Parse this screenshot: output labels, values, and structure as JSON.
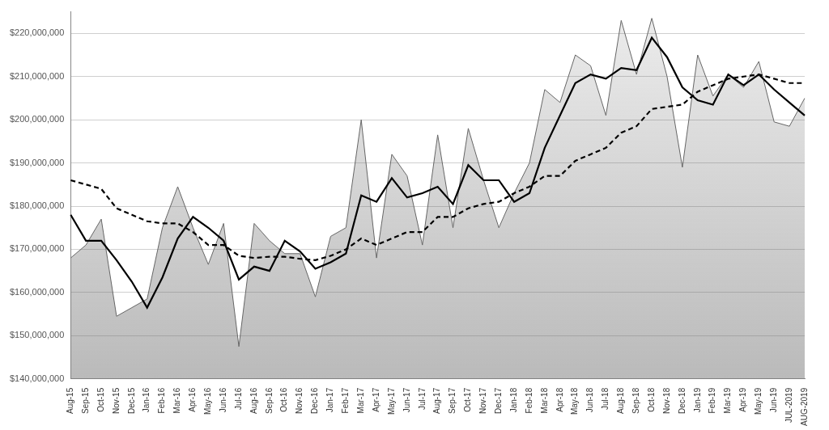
{
  "chart_data": {
    "type": "line",
    "categories": [
      "Aug-15",
      "Sep-15",
      "Oct-15",
      "Nov-15",
      "Dec-15",
      "Jan-16",
      "Feb-16",
      "Mar-16",
      "Apr-16",
      "May-16",
      "Jun-16",
      "Jul-16",
      "Aug-16",
      "Sep-16",
      "Oct-16",
      "Nov-16",
      "Dec-16",
      "Jan-17",
      "Feb-17",
      "Mar-17",
      "Apr-17",
      "May-17",
      "Jun-17",
      "Jul-17",
      "Aug-17",
      "Sep-17",
      "Oct-17",
      "Nov-17",
      "Dec-17",
      "Jan-18",
      "Feb-18",
      "Mar-18",
      "Apr-18",
      "May-18",
      "Jun-18",
      "Jul-18",
      "Aug-18",
      "Sep-18",
      "Oct-18",
      "Nov-18",
      "Dec-18",
      "Jan-19",
      "Feb-19",
      "Mar-19",
      "Apr-19",
      "May-19",
      "Jun-19",
      "JUL-2019",
      "AUG-2019"
    ],
    "series": [
      {
        "type": "area",
        "color": "#666666",
        "line_style": "solid",
        "values": [
          168000000,
          171000000,
          177000000,
          154500000,
          156500000,
          158500000,
          175000000,
          184500000,
          175000000,
          166500000,
          176000000,
          147500000,
          176000000,
          172000000,
          169000000,
          169000000,
          159000000,
          173000000,
          175000000,
          200000000,
          168000000,
          192000000,
          187000000,
          171000000,
          196500000,
          175000000,
          198000000,
          186000000,
          175000000,
          183000000,
          190000000,
          207000000,
          204000000,
          215000000,
          212500000,
          201000000,
          223000000,
          210500000,
          223500000,
          210000000,
          189000000,
          215000000,
          205500000,
          210500000,
          207500000,
          213500000,
          199500000,
          198500000,
          205000000
        ]
      },
      {
        "type": "line",
        "color": "#000000",
        "line_style": "solid",
        "values": [
          178000000,
          172000000,
          172000000,
          167500000,
          162500000,
          156500000,
          163500000,
          172500000,
          177500000,
          175000000,
          172000000,
          163000000,
          166000000,
          165000000,
          172000000,
          169500000,
          165500000,
          167000000,
          169000000,
          182500000,
          181000000,
          186500000,
          182000000,
          183000000,
          184500000,
          180500000,
          189500000,
          186000000,
          186000000,
          181000000,
          183000000,
          193500000,
          201000000,
          208500000,
          210500000,
          209500000,
          212000000,
          211500000,
          219000000,
          214500000,
          207500000,
          204500000,
          203500000,
          210500000,
          208000000,
          210500000,
          207000000,
          204000000,
          201000000
        ]
      },
      {
        "type": "line",
        "color": "#000000",
        "line_style": "dashed",
        "values": [
          186000000,
          185000000,
          184000000,
          179500000,
          178000000,
          176500000,
          176000000,
          176000000,
          174000000,
          171000000,
          171000000,
          168500000,
          168000000,
          168300000,
          168300000,
          167800000,
          167500000,
          168500000,
          170000000,
          172500000,
          171000000,
          172500000,
          174000000,
          174000000,
          177500000,
          177500000,
          179500000,
          180500000,
          181000000,
          183000000,
          184500000,
          187000000,
          187000000,
          190500000,
          192000000,
          193500000,
          197000000,
          198500000,
          202500000,
          203000000,
          203500000,
          206500000,
          208000000,
          209500000,
          210000000,
          210500000,
          209500000,
          208500000,
          208500000
        ]
      }
    ],
    "ylim": [
      140000000,
      225000000
    ],
    "yticks": [
      {
        "value": 140000000,
        "label": "$140,000,000"
      },
      {
        "value": 150000000,
        "label": "$150,000,000"
      },
      {
        "value": 160000000,
        "label": "$160,000,000"
      },
      {
        "value": 170000000,
        "label": "$170,000,000"
      },
      {
        "value": 180000000,
        "label": "$180,000,000"
      },
      {
        "value": 190000000,
        "label": "$190,000,000"
      },
      {
        "value": 200000000,
        "label": "$200,000,000"
      },
      {
        "value": 210000000,
        "label": "$210,000,000"
      },
      {
        "value": 220000000,
        "label": "$220,000,000"
      }
    ],
    "grid": "y"
  }
}
